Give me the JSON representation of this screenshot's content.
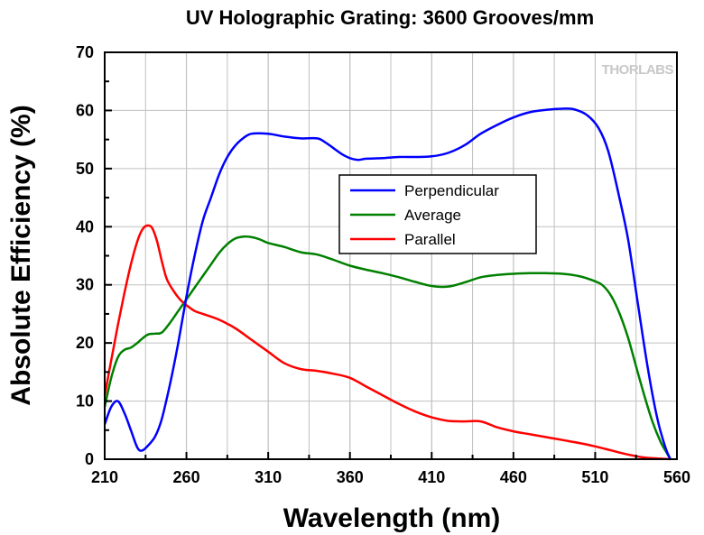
{
  "chart_data": {
    "type": "line",
    "title": "UV Holographic Grating: 3600 Grooves/mm",
    "xlabel": "Wavelength (nm)",
    "ylabel": "Absolute Efficiency (%)",
    "xlim": [
      210,
      560
    ],
    "ylim": [
      0,
      70
    ],
    "xticks": [
      210,
      260,
      310,
      360,
      410,
      460,
      510,
      560
    ],
    "yticks": [
      0,
      10,
      20,
      30,
      40,
      50,
      60,
      70
    ],
    "grid": true,
    "legend_position": "center",
    "watermark": "THORLABS",
    "series": [
      {
        "name": "Perpendicular",
        "color": "#0000ff",
        "points": [
          [
            210,
            6
          ],
          [
            214,
            9
          ],
          [
            218,
            10
          ],
          [
            222,
            8
          ],
          [
            226,
            5
          ],
          [
            230,
            2
          ],
          [
            233,
            1.5
          ],
          [
            237,
            2.5
          ],
          [
            241,
            4
          ],
          [
            245,
            7
          ],
          [
            250,
            13
          ],
          [
            255,
            20
          ],
          [
            260,
            28
          ],
          [
            265,
            35
          ],
          [
            270,
            41
          ],
          [
            275,
            45
          ],
          [
            280,
            49
          ],
          [
            285,
            52
          ],
          [
            290,
            54
          ],
          [
            295,
            55.3
          ],
          [
            300,
            56
          ],
          [
            310,
            56
          ],
          [
            320,
            55.5
          ],
          [
            330,
            55.2
          ],
          [
            340,
            55.2
          ],
          [
            345,
            54.5
          ],
          [
            350,
            53.5
          ],
          [
            355,
            52.5
          ],
          [
            360,
            51.8
          ],
          [
            365,
            51.5
          ],
          [
            370,
            51.7
          ],
          [
            380,
            51.8
          ],
          [
            390,
            52
          ],
          [
            400,
            52
          ],
          [
            410,
            52.1
          ],
          [
            420,
            52.7
          ],
          [
            430,
            54
          ],
          [
            440,
            56
          ],
          [
            450,
            57.5
          ],
          [
            460,
            58.8
          ],
          [
            470,
            59.7
          ],
          [
            480,
            60.1
          ],
          [
            490,
            60.3
          ],
          [
            497,
            60.2
          ],
          [
            505,
            59.2
          ],
          [
            512,
            57
          ],
          [
            518,
            53
          ],
          [
            524,
            46
          ],
          [
            530,
            38
          ],
          [
            536,
            27
          ],
          [
            542,
            16
          ],
          [
            548,
            7
          ],
          [
            553,
            2
          ],
          [
            556,
            0
          ]
        ]
      },
      {
        "name": "Average",
        "color": "#008000",
        "points": [
          [
            210,
            9
          ],
          [
            214,
            14
          ],
          [
            218,
            17.5
          ],
          [
            222,
            18.8
          ],
          [
            226,
            19.2
          ],
          [
            230,
            20
          ],
          [
            234,
            21
          ],
          [
            237,
            21.5
          ],
          [
            241,
            21.6
          ],
          [
            245,
            21.8
          ],
          [
            250,
            23.5
          ],
          [
            255,
            25.5
          ],
          [
            260,
            27.5
          ],
          [
            265,
            29.5
          ],
          [
            270,
            31.5
          ],
          [
            275,
            33.5
          ],
          [
            280,
            35.5
          ],
          [
            285,
            37
          ],
          [
            290,
            38
          ],
          [
            295,
            38.3
          ],
          [
            300,
            38.2
          ],
          [
            305,
            37.8
          ],
          [
            310,
            37.2
          ],
          [
            320,
            36.5
          ],
          [
            330,
            35.6
          ],
          [
            340,
            35.2
          ],
          [
            350,
            34.3
          ],
          [
            360,
            33.3
          ],
          [
            370,
            32.6
          ],
          [
            380,
            32
          ],
          [
            390,
            31.3
          ],
          [
            400,
            30.5
          ],
          [
            410,
            29.8
          ],
          [
            420,
            29.7
          ],
          [
            430,
            30.4
          ],
          [
            440,
            31.3
          ],
          [
            450,
            31.7
          ],
          [
            460,
            31.9
          ],
          [
            470,
            32
          ],
          [
            480,
            32
          ],
          [
            490,
            31.9
          ],
          [
            500,
            31.5
          ],
          [
            510,
            30.6
          ],
          [
            515,
            29.8
          ],
          [
            520,
            28
          ],
          [
            525,
            25
          ],
          [
            530,
            21
          ],
          [
            535,
            16
          ],
          [
            540,
            11
          ],
          [
            545,
            6.5
          ],
          [
            550,
            3
          ],
          [
            554,
            1
          ],
          [
            556,
            0
          ]
        ]
      },
      {
        "name": "Parallel",
        "color": "#ff0000",
        "points": [
          [
            210,
            11
          ],
          [
            214,
            17
          ],
          [
            218,
            23
          ],
          [
            222,
            28.5
          ],
          [
            226,
            33.5
          ],
          [
            230,
            37.5
          ],
          [
            233,
            39.5
          ],
          [
            236,
            40.2
          ],
          [
            239,
            39.8
          ],
          [
            242,
            37.5
          ],
          [
            245,
            34
          ],
          [
            248,
            31
          ],
          [
            252,
            29
          ],
          [
            256,
            27.5
          ],
          [
            260,
            26.5
          ],
          [
            265,
            25.5
          ],
          [
            270,
            25
          ],
          [
            280,
            24
          ],
          [
            290,
            22.5
          ],
          [
            300,
            20.5
          ],
          [
            310,
            18.5
          ],
          [
            320,
            16.5
          ],
          [
            330,
            15.5
          ],
          [
            340,
            15.2
          ],
          [
            350,
            14.7
          ],
          [
            360,
            14
          ],
          [
            370,
            12.5
          ],
          [
            380,
            11
          ],
          [
            390,
            9.5
          ],
          [
            400,
            8.2
          ],
          [
            410,
            7.2
          ],
          [
            420,
            6.6
          ],
          [
            430,
            6.5
          ],
          [
            440,
            6.5
          ],
          [
            450,
            5.5
          ],
          [
            460,
            4.8
          ],
          [
            470,
            4.3
          ],
          [
            480,
            3.8
          ],
          [
            490,
            3.3
          ],
          [
            500,
            2.8
          ],
          [
            510,
            2.2
          ],
          [
            520,
            1.5
          ],
          [
            530,
            0.8
          ],
          [
            540,
            0.3
          ],
          [
            550,
            0.1
          ],
          [
            556,
            0
          ]
        ]
      }
    ]
  }
}
